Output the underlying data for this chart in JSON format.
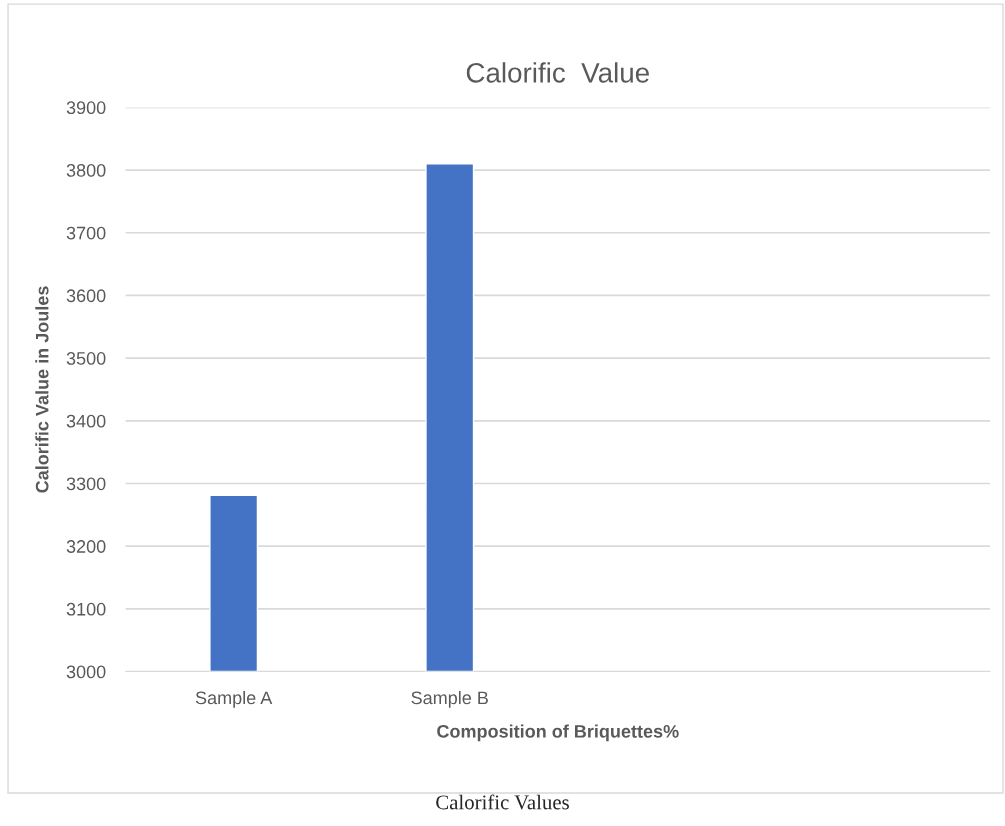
{
  "chart_data": {
    "type": "bar",
    "title": "Calorific  Value",
    "xlabel": "Composition of Briquettes%",
    "ylabel": "Calorific Value in Joules",
    "categories": [
      "Sample A",
      "Sample B",
      null,
      null
    ],
    "values": [
      3281,
      3810,
      null,
      null
    ],
    "color": "#4472c4",
    "ylim": [
      3000,
      3900
    ],
    "yticks": [
      3000,
      3100,
      3200,
      3300,
      3400,
      3500,
      3600,
      3700,
      3800,
      3900
    ],
    "grid": "y",
    "annotations": [
      "Calorific Values"
    ]
  }
}
